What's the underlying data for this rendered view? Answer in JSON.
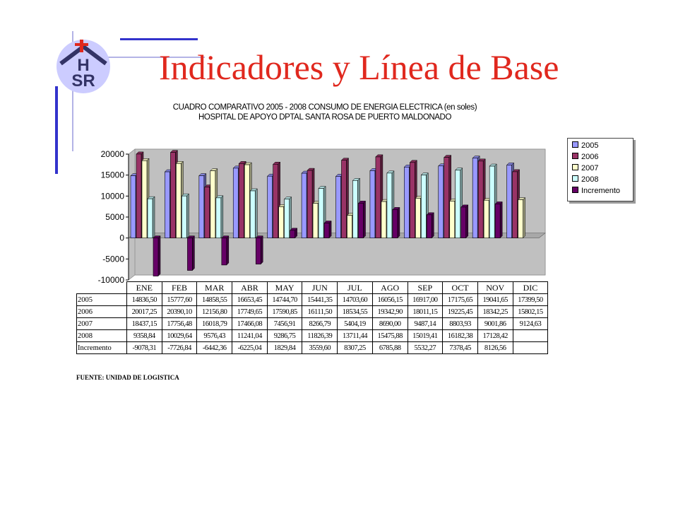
{
  "slide": {
    "title": "Indicadores y Línea de Base"
  },
  "logo": {
    "text_top": "H",
    "text_bottom": "SR"
  },
  "chart_data": {
    "type": "bar",
    "title": "CUADRO COMPARATIVO 2005 - 2008   CONSUMO DE ENERGIA ELECTRICA (en soles)",
    "subtitle": "HOSPITAL DE APOYO DPTAL SANTA ROSA DE PUERTO MALDONADO",
    "categories": [
      "ENE",
      "FEB",
      "MAR",
      "ABR",
      "MAY",
      "JUN",
      "JUL",
      "AGO",
      "SEP",
      "OCT",
      "NOV",
      "DIC"
    ],
    "ylim": [
      -10000,
      20000
    ],
    "yticks": [
      20000,
      15000,
      10000,
      5000,
      0,
      -5000,
      -10000
    ],
    "ytick_labels": [
      "20000",
      "15000",
      "10000",
      "5000",
      "0",
      "-5000",
      "-10000"
    ],
    "legend_position": "right",
    "series": [
      {
        "name": "2005",
        "color": "#9999ff",
        "values": [
          14836.5,
          15777.6,
          14858.55,
          16653.45,
          14744.7,
          15441.35,
          14703.6,
          16056.15,
          16917.0,
          17175.65,
          19041.65,
          17399.5
        ],
        "labels": [
          "14836,50",
          "15777,60",
          "14858,55",
          "16653,45",
          "14744,70",
          "15441,35",
          "14703,60",
          "16056,15",
          "16917,00",
          "17175,65",
          "19041,65",
          "17399,50"
        ]
      },
      {
        "name": "2006",
        "color": "#993366",
        "values": [
          20017.25,
          20390.1,
          12156.8,
          17749.65,
          17590.85,
          16111.5,
          18534.55,
          19342.9,
          18011.15,
          19225.45,
          18342.25,
          15802.15
        ],
        "labels": [
          "20017,25",
          "20390,10",
          "12156,80",
          "17749,65",
          "17590,85",
          "16111,50",
          "18534,55",
          "19342,90",
          "18011,15",
          "19225,45",
          "18342,25",
          "15802,15"
        ]
      },
      {
        "name": "2007",
        "color": "#ffffcc",
        "values": [
          18437.15,
          17756.48,
          16018.79,
          17466.08,
          7456.91,
          8266.79,
          5404.19,
          8690.0,
          9487.14,
          8803.93,
          9001.86,
          9124.63
        ],
        "labels": [
          "18437,15",
          "17756,48",
          "16018,79",
          "17466,08",
          "7456,91",
          "8266,79",
          "5404,19",
          "8690,00",
          "9487,14",
          "8803,93",
          "9001,86",
          "9124,63"
        ]
      },
      {
        "name": "2008",
        "color": "#ccffff",
        "values": [
          9358.84,
          10029.64,
          9576.43,
          11241.04,
          9286.75,
          11826.39,
          13711.44,
          15475.88,
          15019.41,
          16182.38,
          17128.42,
          null
        ],
        "labels": [
          "9358,84",
          "10029,64",
          "9576,43",
          "11241,04",
          "9286,75",
          "11826,39",
          "13711,44",
          "15475,88",
          "15019,41",
          "16182,38",
          "17128,42",
          ""
        ]
      },
      {
        "name": "Incremento",
        "color": "#660066",
        "values": [
          -9078.31,
          -7726.84,
          -6442.36,
          -6225.04,
          1829.84,
          3559.6,
          8307.25,
          6785.88,
          5532.27,
          7378.45,
          8126.56,
          null
        ],
        "labels": [
          "-9078,31",
          "-7726,84",
          "-6442,36",
          "-6225,04",
          "1829,84",
          "3559,60",
          "8307,25",
          "6785,88",
          "5532,27",
          "7378,45",
          "8126,56",
          ""
        ]
      }
    ],
    "table_row_labels": [
      "2005",
      "2006",
      "2007",
      "2008",
      "Incremento"
    ]
  },
  "source": "FUENTE: UNIDAD DE LOGISTICA"
}
